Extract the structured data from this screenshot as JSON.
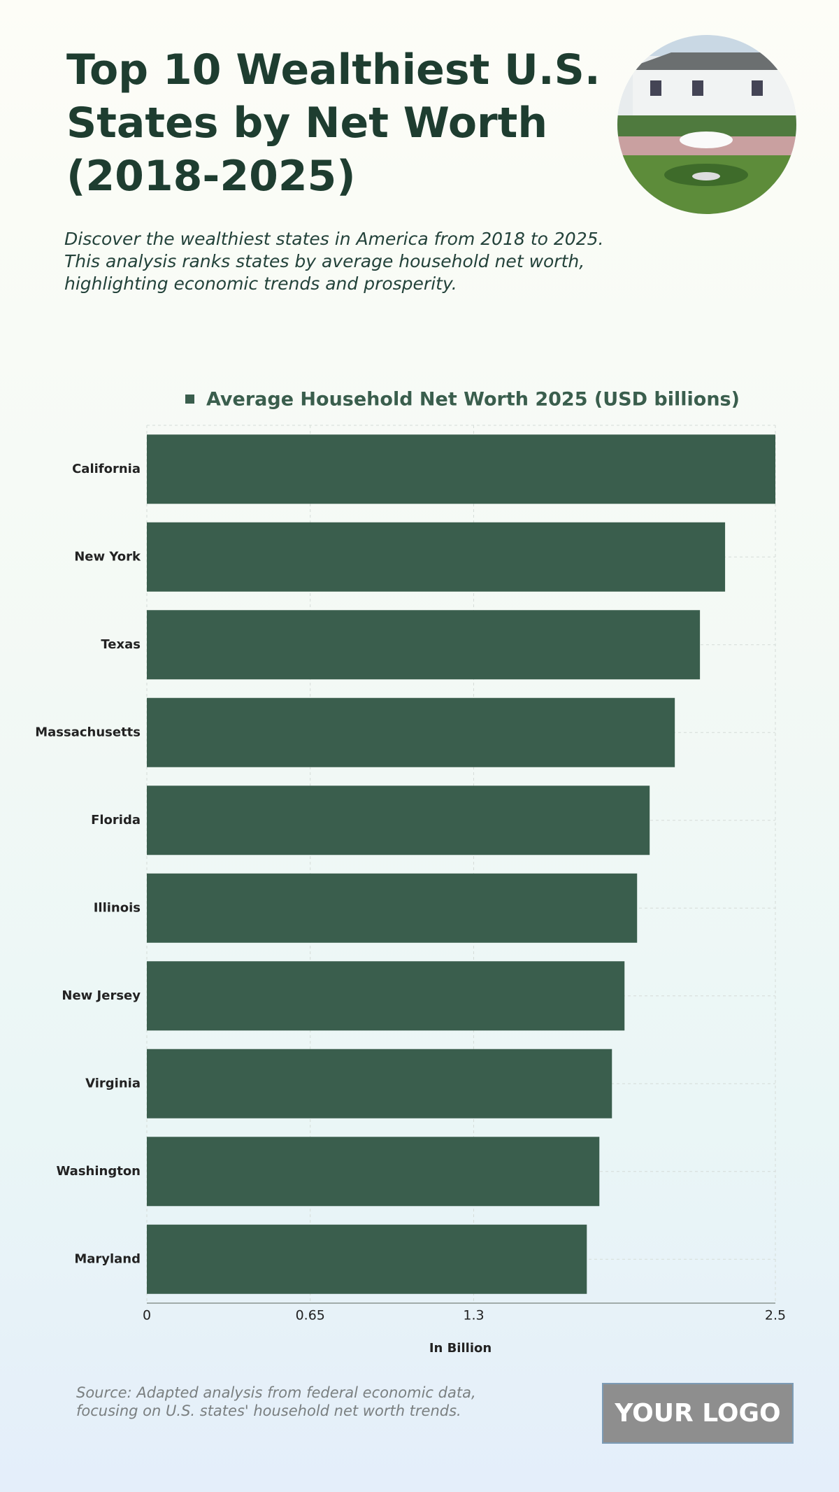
{
  "chart_data": {
    "type": "bar",
    "orientation": "horizontal",
    "title": "Top 10 Wealthiest U.S. States by Net Worth (2018-2025)",
    "subtitle": "Discover the wealthiest states in America from 2018 to 2025. This analysis ranks states by average household net worth, highlighting economic trends and prosperity.",
    "categories": [
      "California",
      "New York",
      "Texas",
      "Massachusetts",
      "Florida",
      "Illinois",
      "New Jersey",
      "Virginia",
      "Washington",
      "Maryland"
    ],
    "series": [
      {
        "name": "Average Household Net Worth 2025 (USD billions)",
        "color": "#3a5e4d",
        "values": [
          2.5,
          2.3,
          2.2,
          2.1,
          2.0,
          1.95,
          1.9,
          1.85,
          1.8,
          1.75
        ]
      }
    ],
    "xlabel": "In Billion",
    "xlim": [
      0,
      2.5
    ],
    "xticks": [
      0,
      0.65,
      1.3,
      2.5
    ],
    "grid": true,
    "legend": "top",
    "source": "Source: Adapted analysis from federal economic data, focusing on U.S. states' household net worth trends.",
    "logo": "YOUR LOGO"
  }
}
